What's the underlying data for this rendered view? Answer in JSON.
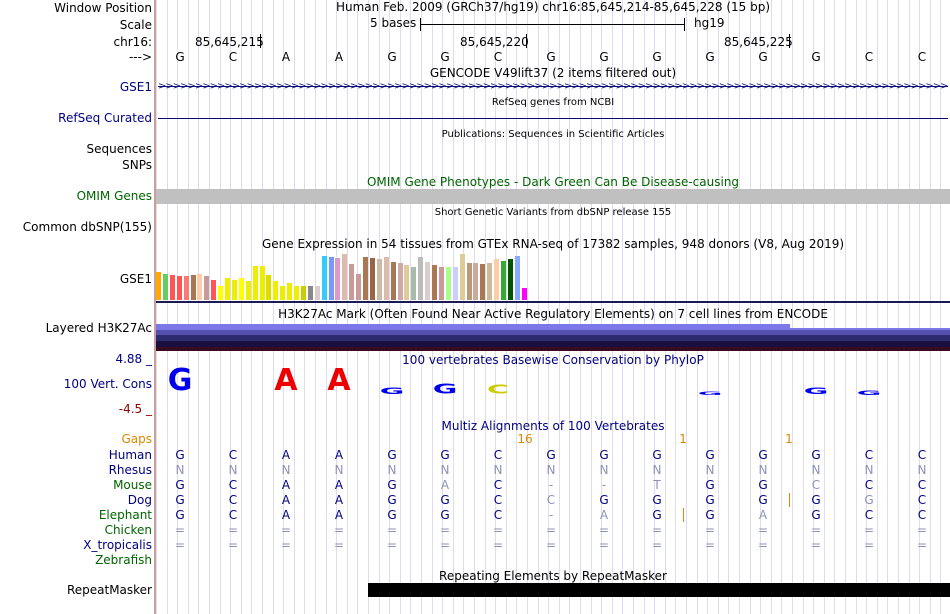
{
  "labels": {
    "window_position": "Window Position",
    "scale": "Scale",
    "chrom": "chr16:",
    "strand": "--->",
    "gse1_gencode": "GSE1",
    "refseq_curated": "RefSeq Curated",
    "sequences": "Sequences",
    "snps": "SNPs",
    "omim_genes": "OMIM Genes",
    "common_dbsnp": "Common dbSNP(155)",
    "gse1_gtex": "GSE1",
    "layered_h3k27ac": "Layered H3K27Ac",
    "cons_max": "4.88 _",
    "cons_label": "100 Vert. Cons",
    "cons_min": "-4.5 _",
    "repeatmasker": "RepeatMasker"
  },
  "header": {
    "title": "Human Feb. 2009 (GRCh37/hg19)   chr16:85,645,214-85,645,228 (15 bp)",
    "scale_text": "5 bases",
    "assembly": "hg19",
    "positions": [
      "85,645,215",
      "85,645,220",
      "85,645,225"
    ]
  },
  "sequence": [
    "G",
    "C",
    "A",
    "A",
    "G",
    "G",
    "C",
    "G",
    "G",
    "G",
    "G",
    "G",
    "G",
    "C",
    "C"
  ],
  "tracks": {
    "gencode_title": "GENCODE V49lift37 (2 items filtered out)",
    "refseq_title": "RefSeq genes from NCBI",
    "publications_title": "Publications: Sequences in Scientific Articles",
    "omim_title": "OMIM Gene Phenotypes - Dark Green Can Be Disease-causing",
    "dbsnp_title": "Short Genetic Variants from dbSNP release 155",
    "gtex_title": "Gene Expression in 54 tissues from GTEx RNA-seq of 17382 samples, 948 donors (V8, Aug 2019)",
    "h3k27ac_title": "H3K27Ac Mark (Often Found Near Active Regulatory Elements) on 7 cell lines from ENCODE",
    "cons_title": "100 vertebrates Basewise Conservation by PhyloP",
    "multiz_title": "Multiz Alignments of 100 Vertebrates",
    "repeat_title": "Repeating Elements by RepeatMasker"
  },
  "gtex": {
    "values": [
      0.58,
      0.55,
      0.52,
      0.5,
      0.5,
      0.52,
      0.55,
      0.5,
      0.42,
      0.3,
      0.45,
      0.42,
      0.45,
      0.4,
      0.7,
      0.7,
      0.52,
      0.4,
      0.3,
      0.35,
      0.3,
      0.3,
      0.3,
      0.3,
      0.92,
      0.9,
      0.88,
      0.95,
      0.75,
      0.55,
      0.9,
      0.88,
      0.85,
      0.9,
      0.8,
      0.78,
      0.72,
      0.68,
      0.9,
      0.8,
      0.72,
      0.68,
      0.68,
      0.68,
      0.95,
      0.78,
      0.78,
      0.75,
      0.78,
      0.85,
      0.82,
      0.85,
      0.92,
      0.25
    ],
    "colors": [
      "#ffaa00",
      "#66cc66",
      "#ff5555",
      "#ff5555",
      "#ff7777",
      "#aa7755",
      "#ffccaa",
      "#cc9999",
      "#ff5555",
      "#ffff00",
      "#eeee00",
      "#eeee00",
      "#ffff00",
      "#eeee00",
      "#eeee00",
      "#eeee00",
      "#dddd00",
      "#eeee00",
      "#eeee00",
      "#eeee00",
      "#eeee00",
      "#cccc00",
      "#888888",
      "#ddcccc",
      "#33ccff",
      "#7799ff",
      "#dd99cc",
      "#ddbbaa",
      "#cc9999",
      "#cc9999",
      "#aa7755",
      "#996644",
      "#ccbbaa",
      "#ddbbaa",
      "#aa7755",
      "#ccaaaa",
      "#ddcc99",
      "#aabbaa",
      "#bbbbbb",
      "#ddcccc",
      "#aa7755",
      "#cc9999",
      "#aaff88",
      "#ccccff",
      "#ddcc99",
      "#bb9977",
      "#ccaa99",
      "#aa7755",
      "#ccbb99",
      "#ffccaa",
      "#33aa33",
      "#005500",
      "#88aaff",
      "#ff00ff"
    ]
  },
  "multiz": {
    "gaps_label": "Gaps",
    "gap_values": [
      "16",
      "1",
      "1"
    ],
    "species": [
      {
        "name": "Human",
        "bases": [
          "G",
          "C",
          "A",
          "A",
          "G",
          "G",
          "C",
          "G",
          "G",
          "G",
          "G",
          "G",
          "G",
          "C",
          "C"
        ]
      },
      {
        "name": "Rhesus",
        "bases": [
          "N",
          "N",
          "N",
          "N",
          "N",
          "N",
          "N",
          "N",
          "N",
          "N",
          "N",
          "N",
          "N",
          "N",
          "N"
        ]
      },
      {
        "name": "Mouse",
        "bases": [
          "G",
          "C",
          "A",
          "A",
          "G",
          "A",
          "C",
          "-",
          "-",
          "T",
          "G",
          "G",
          "C",
          "C",
          "C"
        ]
      },
      {
        "name": "Dog",
        "bases": [
          "G",
          "C",
          "A",
          "A",
          "G",
          "G",
          "C",
          "C",
          "G",
          "G",
          "G",
          "G",
          "G",
          "G",
          "C"
        ]
      },
      {
        "name": "Elephant",
        "bases": [
          "G",
          "C",
          "A",
          "A",
          "G",
          "G",
          "C",
          "-",
          "A",
          "G",
          "G",
          "A",
          "G",
          "C",
          "C"
        ]
      },
      {
        "name": "Chicken",
        "bases": [
          "=",
          "=",
          "=",
          "=",
          "=",
          "=",
          "=",
          "=",
          "=",
          "=",
          "=",
          "=",
          "=",
          "=",
          "="
        ]
      },
      {
        "name": "X_tropicalis",
        "bases": [
          "=",
          "=",
          "=",
          "=",
          "=",
          "=",
          "=",
          "=",
          "=",
          "=",
          "=",
          "=",
          "=",
          "=",
          "="
        ]
      },
      {
        "name": "Zebrafish",
        "bases": [
          "",
          "",
          "",
          "",
          "",
          "",
          "",
          "",
          "",
          "",
          "",
          "",
          "",
          "",
          ""
        ]
      }
    ]
  },
  "cons_logo": [
    {
      "letter": "G",
      "color": "#0000ee",
      "scale": 1.0
    },
    {
      "letter": "A",
      "color": "#ee0000",
      "scale": 1.0
    },
    {
      "letter": "A",
      "color": "#ee0000",
      "scale": 1.0
    },
    {
      "letter": "G",
      "color": "#0000ee",
      "scale": 0.3
    },
    {
      "letter": "G",
      "color": "#0000ee",
      "scale": 0.45
    },
    {
      "letter": "C",
      "color": "#cccc00",
      "scale": 0.4
    },
    {
      "letter": "G",
      "color": "#0000ee",
      "scale": 0.15
    },
    {
      "letter": "G",
      "color": "#0000ee",
      "scale": 0.3
    },
    {
      "letter": "G",
      "color": "#0000ee",
      "scale": 0.2
    }
  ]
}
